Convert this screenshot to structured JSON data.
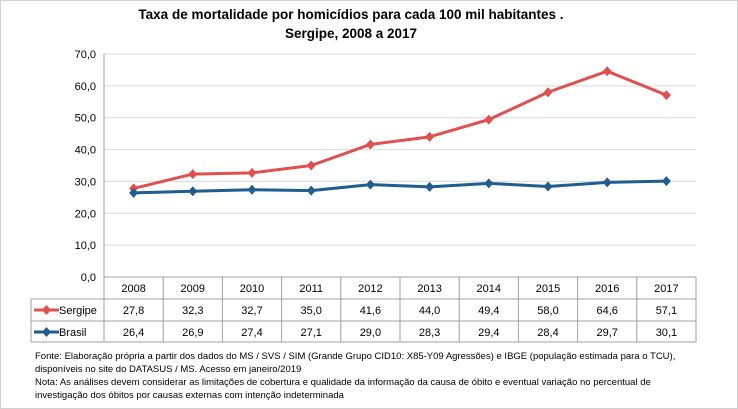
{
  "chart_data": {
    "type": "line",
    "title_line1": "Taxa de mortalidade por homicídios para cada 100 mil habitantes .",
    "title_line2": "Sergipe, 2008 a 2017",
    "categories": [
      "2008",
      "2009",
      "2010",
      "2011",
      "2012",
      "2013",
      "2014",
      "2015",
      "2016",
      "2017"
    ],
    "ylim": [
      0,
      70
    ],
    "yticks": [
      "0,0",
      "10,0",
      "20,0",
      "30,0",
      "40,0",
      "50,0",
      "60,0",
      "70,0"
    ],
    "grid": "horizontal",
    "legend": "data-table",
    "series": [
      {
        "name": "Sergipe",
        "color": "#E0504F",
        "values": [
          27.8,
          32.3,
          32.7,
          35.0,
          41.6,
          44.0,
          49.4,
          58.0,
          64.6,
          57.1
        ],
        "labels": [
          "27,8",
          "32,3",
          "32,7",
          "35,0",
          "41,6",
          "44,0",
          "49,4",
          "58,0",
          "64,6",
          "57,1"
        ]
      },
      {
        "name": "Brasil",
        "color": "#1F5E8E",
        "values": [
          26.4,
          26.9,
          27.4,
          27.1,
          29.0,
          28.3,
          29.4,
          28.4,
          29.7,
          30.1
        ],
        "labels": [
          "26,4",
          "26,9",
          "27,4",
          "27,1",
          "29,0",
          "28,3",
          "29,4",
          "28,4",
          "29,7",
          "30,1"
        ]
      }
    ]
  },
  "notes": {
    "line1": "Fonte: Elaboração própria a partir dos dados do MS / SVS / SIM (Grande Grupo CID10: X85-Y09 Agressões) e IBGE (população estimada para o TCU),",
    "line2": "disponíveis no site do DATASUS / MS. Acesso em janeiro/2019",
    "line3": "Nota:  As análises devem considerar as limitações de cobertura e qualidade da informação da causa de óbito e eventual variação no percentual de",
    "line4": "investigação dos óbitos por causas externas com intenção  indeterminada"
  }
}
